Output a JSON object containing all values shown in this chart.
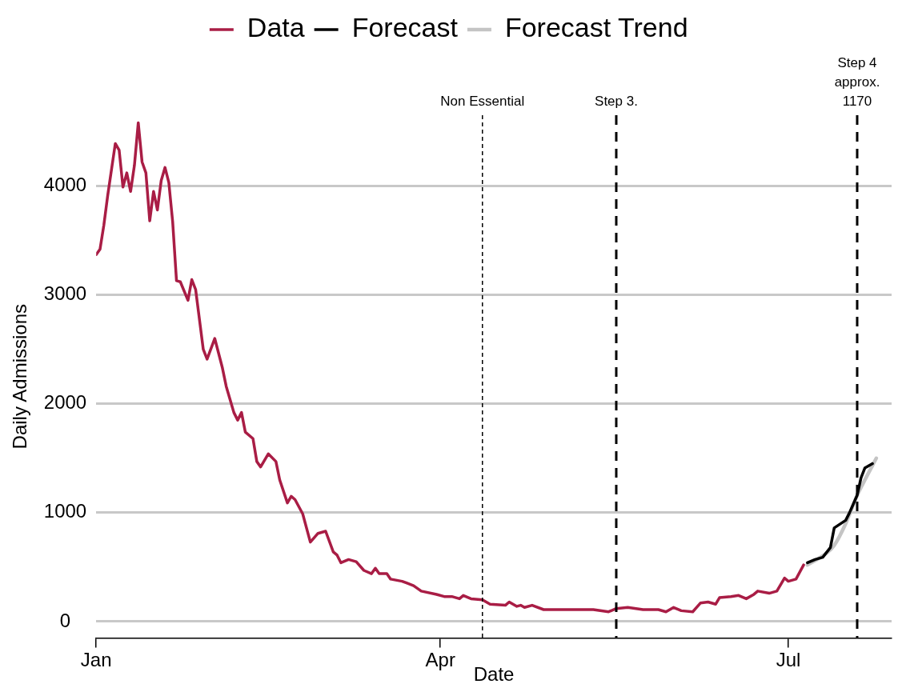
{
  "chart_data": {
    "type": "line",
    "xlabel": "Date",
    "ylabel": "Daily Admissions",
    "legend": "top",
    "grid": "y",
    "marker": "none",
    "line_style": "solid",
    "xlim": [
      "--01-01",
      "--07-28"
    ],
    "xticks": [
      {
        "value": "--01-01",
        "label": "Jan"
      },
      {
        "value": "--04-01",
        "label": "Apr"
      },
      {
        "value": "--07-01",
        "label": "Jul"
      }
    ],
    "ylim": [
      -150,
      4650
    ],
    "yticks": [
      0,
      1000,
      2000,
      3000,
      4000
    ],
    "series": [
      {
        "name": "Data",
        "color": "#a91d45",
        "x": [
          "--01-01",
          "--01-02",
          "--01-03",
          "--01-04",
          "--01-05",
          "--01-06",
          "--01-07",
          "--01-08",
          "--01-09",
          "--01-10",
          "--01-11",
          "--01-12",
          "--01-13",
          "--01-14",
          "--01-15",
          "--01-16",
          "--01-17",
          "--01-18",
          "--01-19",
          "--01-20",
          "--01-21",
          "--01-22",
          "--01-23",
          "--01-25",
          "--01-26",
          "--01-27",
          "--01-29",
          "--01-30",
          "--02-01",
          "--02-03",
          "--02-04",
          "--02-06",
          "--02-07",
          "--02-08",
          "--02-09",
          "--02-11",
          "--02-12",
          "--02-13",
          "--02-15",
          "--02-17",
          "--02-18",
          "--02-20",
          "--02-21",
          "--02-22",
          "--02-24",
          "--02-26",
          "--02-28",
          "--03-02",
          "--03-04",
          "--03-05",
          "--03-06",
          "--03-08",
          "--03-10",
          "--03-12",
          "--03-14",
          "--03-15",
          "--03-16",
          "--03-18",
          "--03-19",
          "--03-22",
          "--03-25",
          "--03-27",
          "--03-31",
          "--04-02",
          "--04-04",
          "--04-06",
          "--04-07",
          "--04-09",
          "--04-12",
          "--04-14",
          "--04-18",
          "--04-19",
          "--04-21",
          "--04-22",
          "--04-23",
          "--04-25",
          "--04-28",
          "--05-02",
          "--05-07",
          "--05-11",
          "--05-15",
          "--05-17",
          "--05-20",
          "--05-24",
          "--05-28",
          "--05-30",
          "--06-01",
          "--06-03",
          "--06-06",
          "--06-08",
          "--06-10",
          "--06-12",
          "--06-13",
          "--06-16",
          "--06-18",
          "--06-20",
          "--06-22",
          "--06-23",
          "--06-26",
          "--06-28",
          "--06-30",
          "--07-01",
          "--07-03",
          "--07-05"
        ],
        "values": [
          3370,
          3420,
          3640,
          3910,
          4150,
          4390,
          4330,
          3990,
          4120,
          3950,
          4190,
          4580,
          4220,
          4120,
          3680,
          3950,
          3780,
          4050,
          4170,
          4030,
          3670,
          3130,
          3120,
          2950,
          3140,
          3050,
          2500,
          2410,
          2600,
          2330,
          2160,
          1920,
          1850,
          1920,
          1740,
          1680,
          1470,
          1420,
          1540,
          1470,
          1300,
          1090,
          1150,
          1120,
          990,
          730,
          810,
          830,
          640,
          610,
          540,
          570,
          550,
          470,
          440,
          490,
          440,
          440,
          390,
          370,
          330,
          280,
          250,
          230,
          230,
          210,
          240,
          210,
          200,
          160,
          150,
          180,
          140,
          150,
          130,
          150,
          110,
          110,
          110,
          110,
          90,
          120,
          130,
          110,
          110,
          90,
          130,
          100,
          90,
          170,
          180,
          160,
          220,
          230,
          240,
          210,
          250,
          280,
          260,
          280,
          400,
          370,
          390,
          520
        ]
      },
      {
        "name": "Forecast",
        "color": "#000000",
        "x": [
          "--07-06",
          "--07-08",
          "--07-10",
          "--07-12",
          "--07-13",
          "--07-16",
          "--07-17",
          "--07-19",
          "--07-20",
          "--07-21",
          "--07-23"
        ],
        "values": [
          540,
          570,
          590,
          680,
          860,
          930,
          1000,
          1160,
          1320,
          1410,
          1450
        ]
      },
      {
        "name": "Forecast Trend",
        "color": "#c4c4c4",
        "x": [
          "--07-06",
          "--07-11",
          "--07-13",
          "--07-16",
          "--07-19",
          "--07-21",
          "--07-24"
        ],
        "values": [
          520,
          630,
          700,
          900,
          1160,
          1300,
          1500
        ]
      }
    ],
    "ref_lines": [
      {
        "axis": "x",
        "value": "--04-12",
        "label": "Non Essential",
        "line_style": "dotted",
        "color": "#000000"
      },
      {
        "axis": "x",
        "value": "--05-17",
        "label": "Step 3.",
        "line_style": "dashed",
        "color": "#000000"
      },
      {
        "axis": "x",
        "value": "--07-19",
        "label": "Step 4\napprox.\n1170",
        "line_style": "dashed",
        "color": "#000000"
      }
    ]
  }
}
